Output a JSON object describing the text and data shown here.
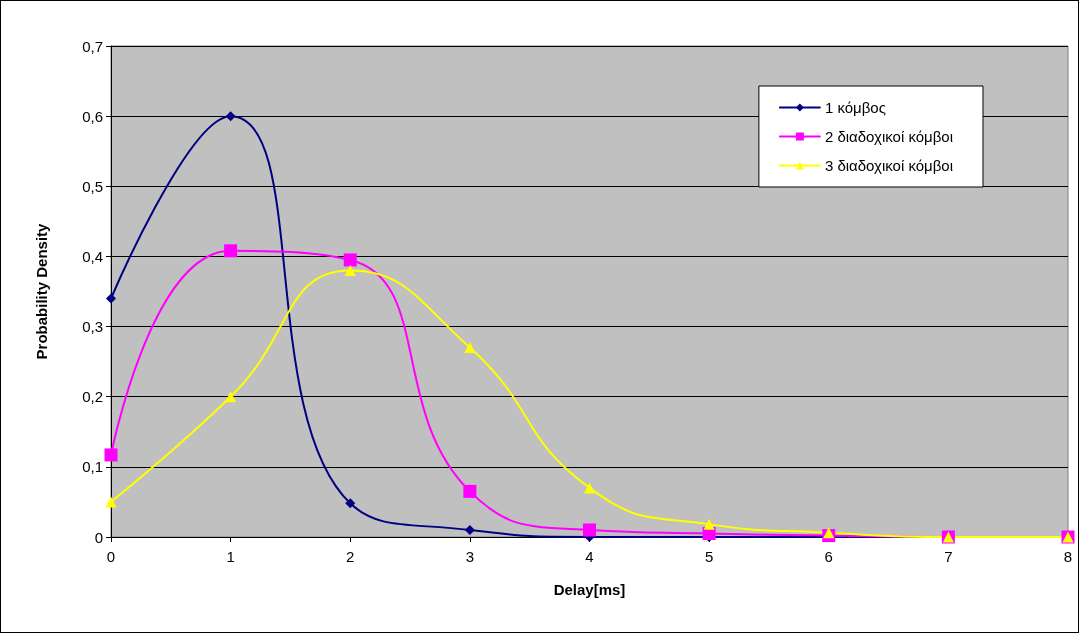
{
  "chart_data": {
    "type": "line",
    "xlabel": "Delay[ms]",
    "ylabel": "Probability Density",
    "x": [
      0,
      1,
      2,
      3,
      4,
      5,
      6,
      7,
      8
    ],
    "series": [
      {
        "name": "1 κόμβος",
        "color": "#000080",
        "marker": "diamond",
        "values": [
          0.34,
          0.6,
          0.048,
          0.01,
          0,
          0,
          0,
          0,
          0
        ]
      },
      {
        "name": "2 διαδοχικοί κόμβοι",
        "color": "#ff00ff",
        "marker": "square",
        "values": [
          0.117,
          0.408,
          0.395,
          0.065,
          0.01,
          0.005,
          0.002,
          0,
          0
        ]
      },
      {
        "name": "3 διαδοχικοί κόμβοι",
        "color": "#ffff00",
        "marker": "triangle",
        "values": [
          0.05,
          0.2,
          0.38,
          0.27,
          0.07,
          0.018,
          0.006,
          0,
          0
        ]
      }
    ],
    "xlim": [
      0,
      8
    ],
    "xticks": [
      0,
      1,
      2,
      3,
      4,
      5,
      6,
      7,
      8
    ],
    "ylim": [
      0,
      0.7
    ],
    "yticks": [
      0,
      {
        "value": 0.1,
        "label": "0,1"
      },
      {
        "value": 0.2,
        "label": "0,2"
      },
      {
        "value": 0.3,
        "label": "0,3"
      },
      {
        "value": 0.4,
        "label": "0,4"
      },
      {
        "value": 0.5,
        "label": "0,5"
      },
      {
        "value": 0.6,
        "label": "0,6"
      },
      {
        "value": 0.7,
        "label": "0,7"
      }
    ],
    "grid": "y",
    "legend": "top right",
    "line_style": "solid"
  }
}
